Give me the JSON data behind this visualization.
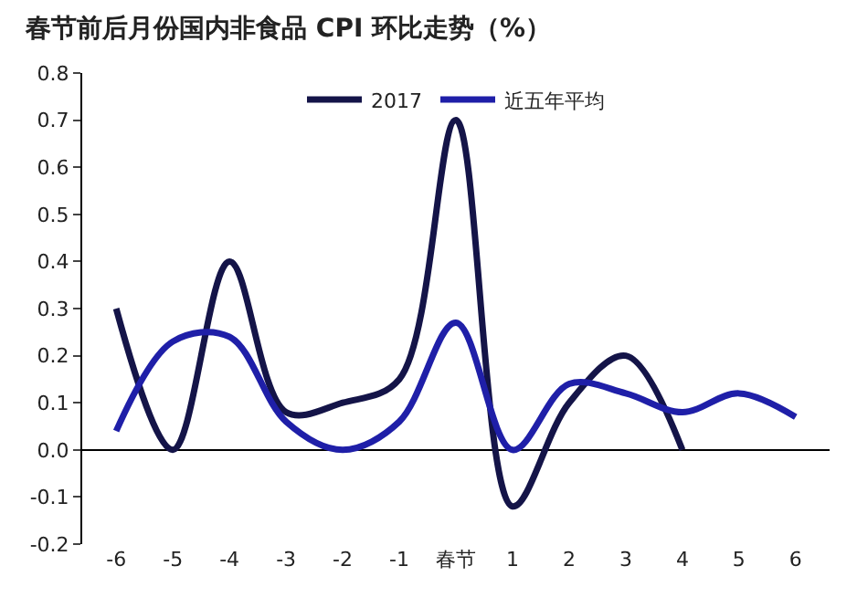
{
  "chart_data": {
    "type": "line",
    "title": "春节前后月份国内非食品 CPI 环比走势（%）",
    "categories": [
      "-6",
      "-5",
      "-4",
      "-3",
      "-2",
      "-1",
      "春节",
      "1",
      "2",
      "3",
      "4",
      "5",
      "6"
    ],
    "series": [
      {
        "name": "2017",
        "color": "#141448",
        "values": [
          0.3,
          0.0,
          0.4,
          0.08,
          0.1,
          0.15,
          0.7,
          -0.12,
          0.1,
          0.2,
          0.0,
          null,
          null
        ]
      },
      {
        "name": "近五年平均",
        "color": "#1f1fa8",
        "values": [
          0.04,
          0.23,
          0.24,
          0.06,
          0.0,
          0.06,
          0.27,
          0.0,
          0.14,
          0.12,
          0.08,
          0.12,
          0.07
        ]
      }
    ],
    "ylim": [
      -0.2,
      0.8
    ],
    "yticks": [
      {
        "value": -0.2,
        "label": "-0.2"
      },
      {
        "value": -0.1,
        "label": "-0.1"
      },
      {
        "value": 0,
        "label": "0.0"
      },
      0.1,
      0.2,
      0.3,
      0.4,
      0.5,
      0.6,
      0.7,
      0.8
    ],
    "legend": "top",
    "marker": "none",
    "line_style": "solid"
  }
}
